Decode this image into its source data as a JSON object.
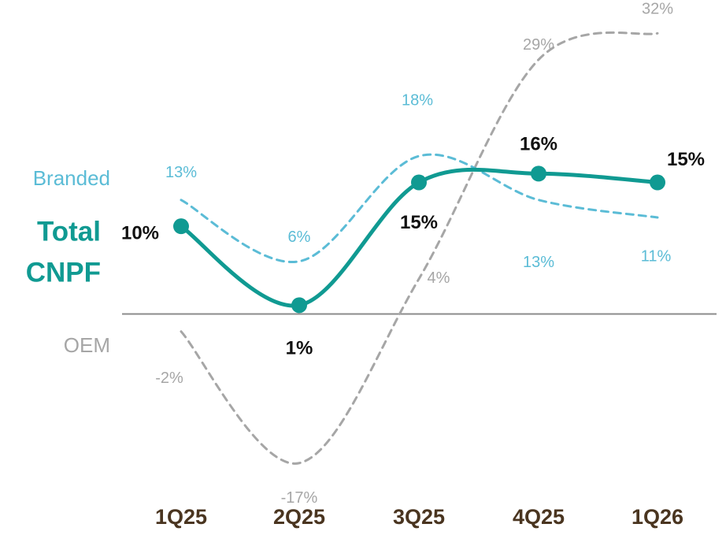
{
  "chart_data": {
    "type": "line",
    "categories": [
      "1Q25",
      "2Q25",
      "3Q25",
      "4Q25",
      "1Q26"
    ],
    "series": [
      {
        "key": "branded",
        "name": "Branded",
        "values": [
          13,
          6,
          18,
          13,
          11
        ],
        "labels": [
          "13%",
          "6%",
          "18%",
          "13%",
          "11%"
        ],
        "color": "#5bbcd6",
        "dashed": true
      },
      {
        "key": "total",
        "name": "Total CNPF",
        "name_lines": [
          "Total",
          "CNPF"
        ],
        "values": [
          10,
          1,
          15,
          16,
          15
        ],
        "labels": [
          "10%",
          "1%",
          "15%",
          "16%",
          "15%"
        ],
        "color": "#109a92",
        "dashed": false
      },
      {
        "key": "oem",
        "name": "OEM",
        "values": [
          -2,
          -17,
          4,
          29,
          32
        ],
        "labels": [
          "-2%",
          "-17%",
          "4%",
          "29%",
          "32%"
        ],
        "color": "#a6a6a6",
        "dashed": true
      }
    ],
    "ylim": [
      -19,
      34
    ],
    "zero_line": true,
    "title": "",
    "xlabel": "",
    "ylabel": "",
    "grid": false,
    "colors": {
      "tick_text": "#4a3520",
      "zero_line": "#8c8c8c",
      "total_label": "#111111"
    }
  }
}
